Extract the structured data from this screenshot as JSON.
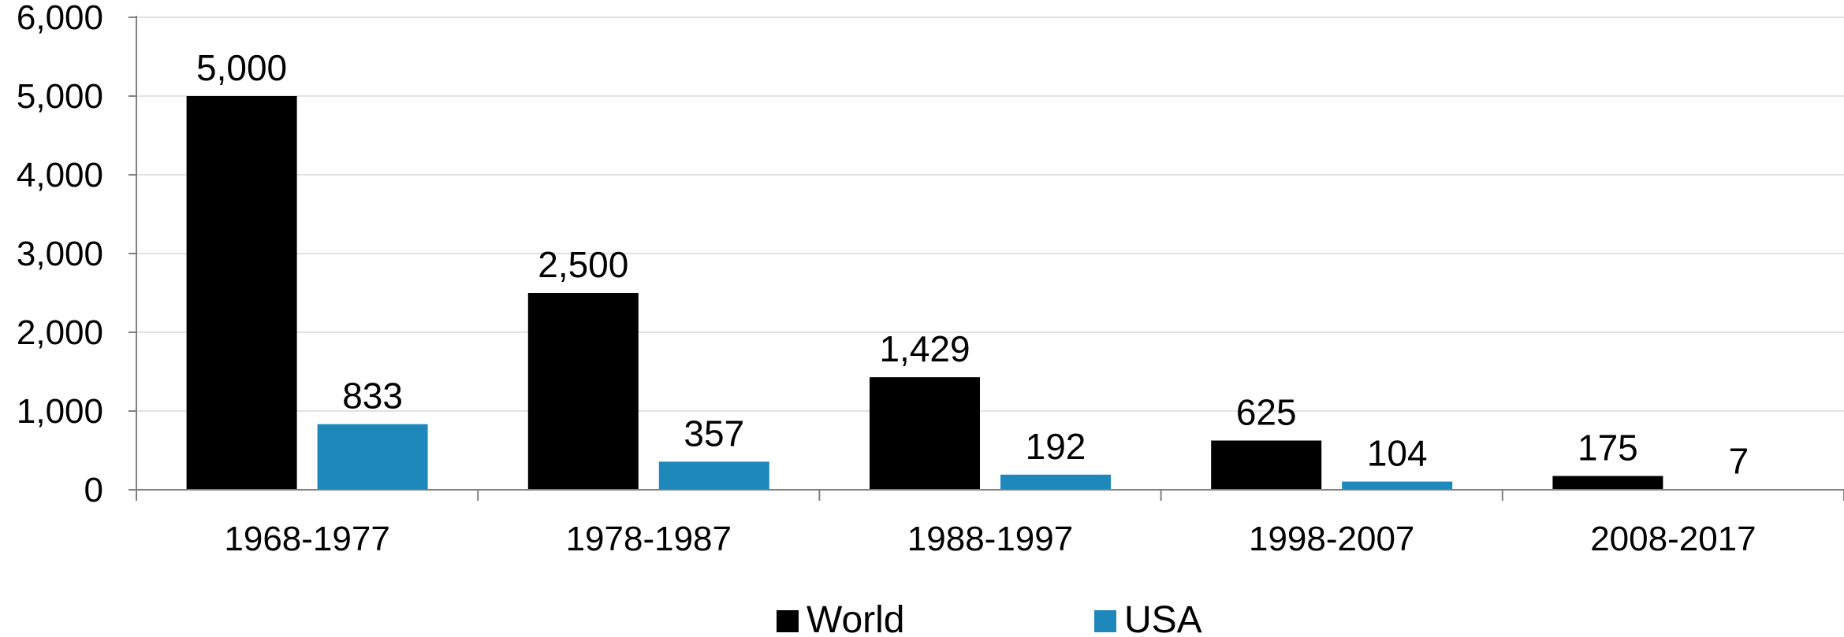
{
  "chart_data": {
    "type": "bar",
    "categories": [
      "1968-1977",
      "1978-1987",
      "1988-1997",
      "1998-2007",
      "2008-2017"
    ],
    "series": [
      {
        "name": "World",
        "values": [
          5000,
          2500,
          1429,
          625,
          175
        ],
        "labels": [
          "5,000",
          "2,500",
          "1,429",
          "625",
          "175"
        ],
        "color": "#000000"
      },
      {
        "name": "USA",
        "values": [
          833,
          357,
          192,
          104,
          7
        ],
        "labels": [
          "833",
          "357",
          "192",
          "104",
          "7"
        ],
        "color": "#1f88bb"
      }
    ],
    "ylim": [
      0,
      6000
    ],
    "yticks": [
      "0",
      "1,000",
      "2,000",
      "3,000",
      "4,000",
      "5,000",
      "6,000"
    ],
    "ytick_values": [
      0,
      1000,
      2000,
      3000,
      4000,
      5000,
      6000
    ],
    "grid": true,
    "legend_position": "bottom-center",
    "title": "",
    "xlabel": "",
    "ylabel": ""
  }
}
